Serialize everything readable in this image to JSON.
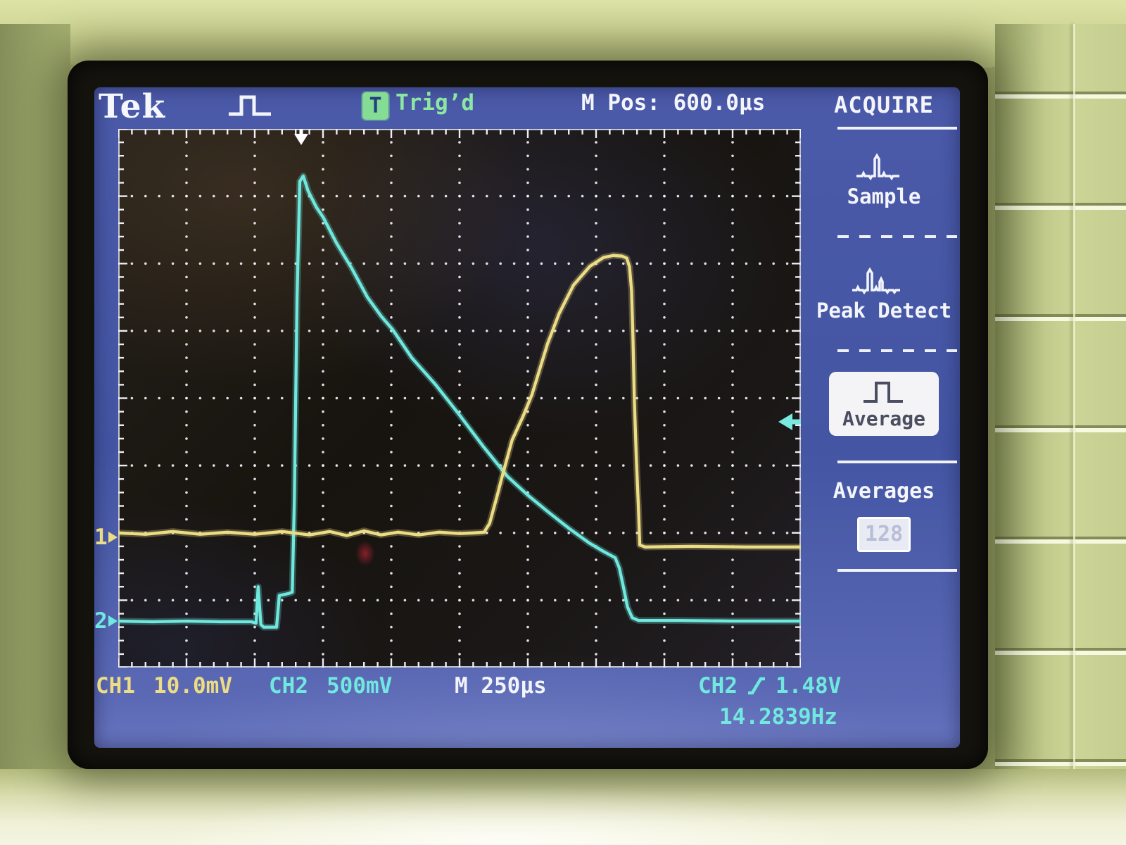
{
  "screen": {
    "brand": "Tek",
    "top_bar": {
      "trigger_badge": "T",
      "trigger_label": "Trig’d",
      "m_pos": "M Pos: 600.0µs"
    },
    "menu": {
      "title": "ACQUIRE",
      "items": [
        {
          "label": "Sample",
          "selected": false
        },
        {
          "label": "Peak Detect",
          "selected": false
        },
        {
          "label": "Average",
          "selected": true
        }
      ],
      "averages_label": "Averages",
      "averages_value": "128"
    },
    "markers": {
      "ch1": "1",
      "ch2": "2"
    },
    "readouts": {
      "ch1_label": "CH1",
      "ch1_scale": "10.0mV",
      "ch2_label": "CH2",
      "ch2_scale": "500mV",
      "timebase": "M 250µs",
      "trig_source": "CH2",
      "trig_level": "1.48V",
      "frequency": "14.2839Hz"
    }
  },
  "colors": {
    "screen_blue": "#4656a6",
    "trace_ch1_yellow": "#ecdc84",
    "trace_ch2_cyan": "#6fe8de",
    "trigd_green": "#85dc95",
    "text_white": "#f4f5fb"
  },
  "chart_data": {
    "type": "line",
    "title": "Oscilloscope graticule 10x8 divisions, y measured in divisions from top",
    "x_units": "divisions (250µs per division)",
    "y_units": "divisions (CH1: 10.0mV/div, CH2: 500mV/div)",
    "x_range": [
      0,
      10
    ],
    "y_range": [
      0,
      8
    ],
    "timebase": "250µs/div",
    "trigger_pos_div": 2.68,
    "trigger_level_div": 4.35,
    "ch1_marker_div": 6.07,
    "ch2_marker_div": 7.31,
    "series": [
      {
        "name": "CH1",
        "scale": "10.0mV/div",
        "color": "#ecdc84",
        "points": [
          [
            0,
            6.0
          ],
          [
            0.4,
            6.02
          ],
          [
            0.8,
            5.98
          ],
          [
            1.2,
            6.02
          ],
          [
            1.6,
            5.99
          ],
          [
            2.0,
            6.02
          ],
          [
            2.4,
            5.98
          ],
          [
            2.8,
            6.03
          ],
          [
            3.1,
            5.98
          ],
          [
            3.35,
            6.04
          ],
          [
            3.6,
            5.97
          ],
          [
            3.85,
            6.03
          ],
          [
            4.1,
            5.99
          ],
          [
            4.4,
            6.03
          ],
          [
            4.7,
            5.99
          ],
          [
            5.0,
            6.01
          ],
          [
            5.2,
            6.0
          ],
          [
            5.36,
            5.99
          ],
          [
            5.44,
            5.86
          ],
          [
            5.55,
            5.45
          ],
          [
            5.62,
            5.18
          ],
          [
            5.77,
            4.62
          ],
          [
            5.93,
            4.27
          ],
          [
            6.06,
            3.95
          ],
          [
            6.29,
            3.19
          ],
          [
            6.46,
            2.74
          ],
          [
            6.67,
            2.32
          ],
          [
            6.91,
            2.04
          ],
          [
            7.11,
            1.91
          ],
          [
            7.25,
            1.88
          ],
          [
            7.38,
            1.89
          ],
          [
            7.45,
            1.92
          ],
          [
            7.49,
            2.05
          ],
          [
            7.52,
            2.4
          ],
          [
            7.54,
            3.1
          ],
          [
            7.56,
            4.0
          ],
          [
            7.59,
            4.9
          ],
          [
            7.62,
            5.6
          ],
          [
            7.64,
            6.18
          ],
          [
            7.72,
            6.21
          ],
          [
            8.4,
            6.2
          ],
          [
            9.2,
            6.21
          ],
          [
            10,
            6.21
          ]
        ]
      },
      {
        "name": "CH2",
        "scale": "500mV/div",
        "color": "#6fe8de",
        "points": [
          [
            0,
            7.31
          ],
          [
            0.5,
            7.32
          ],
          [
            1.0,
            7.31
          ],
          [
            1.5,
            7.32
          ],
          [
            1.95,
            7.32
          ],
          [
            2.02,
            7.34
          ],
          [
            2.05,
            6.8
          ],
          [
            2.09,
            7.36
          ],
          [
            2.13,
            7.4
          ],
          [
            2.32,
            7.4
          ],
          [
            2.36,
            6.93
          ],
          [
            2.5,
            6.9
          ],
          [
            2.55,
            6.88
          ],
          [
            2.58,
            5.5
          ],
          [
            2.62,
            2.5
          ],
          [
            2.66,
            0.78
          ],
          [
            2.71,
            0.7
          ],
          [
            2.78,
            0.92
          ],
          [
            2.9,
            1.16
          ],
          [
            3.0,
            1.31
          ],
          [
            3.2,
            1.7
          ],
          [
            3.42,
            2.07
          ],
          [
            3.65,
            2.5
          ],
          [
            3.85,
            2.78
          ],
          [
            4.02,
            2.98
          ],
          [
            4.3,
            3.4
          ],
          [
            4.65,
            3.8
          ],
          [
            5.0,
            4.25
          ],
          [
            5.35,
            4.72
          ],
          [
            5.7,
            5.16
          ],
          [
            6.0,
            5.44
          ],
          [
            6.3,
            5.69
          ],
          [
            6.6,
            5.93
          ],
          [
            6.9,
            6.15
          ],
          [
            7.1,
            6.27
          ],
          [
            7.28,
            6.37
          ],
          [
            7.34,
            6.52
          ],
          [
            7.4,
            6.8
          ],
          [
            7.46,
            7.1
          ],
          [
            7.53,
            7.26
          ],
          [
            7.62,
            7.3
          ],
          [
            8.2,
            7.3
          ],
          [
            9.0,
            7.31
          ],
          [
            10,
            7.31
          ]
        ]
      }
    ]
  }
}
